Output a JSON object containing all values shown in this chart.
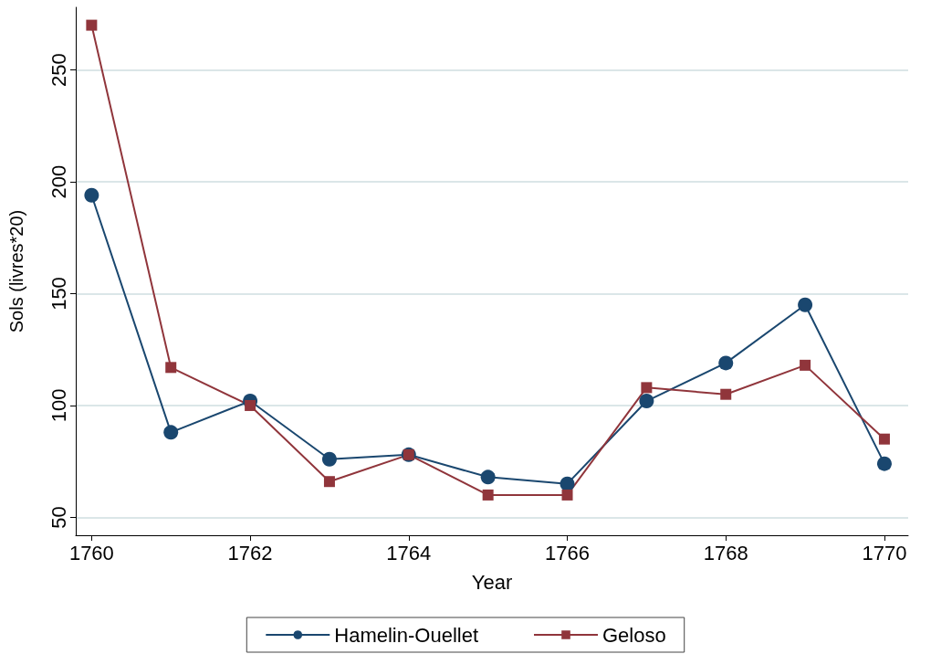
{
  "chart_data": {
    "type": "line",
    "xlabel": "Year",
    "ylabel": "Sols (livres*20)",
    "x": [
      1760,
      1761,
      1762,
      1763,
      1764,
      1765,
      1766,
      1767,
      1768,
      1769,
      1770
    ],
    "series": [
      {
        "name": "Hamelin-Ouellet",
        "color": "#1a476f",
        "marker": "circle",
        "values": [
          194,
          88,
          102,
          76,
          78,
          68,
          65,
          102,
          119,
          145,
          74
        ]
      },
      {
        "name": "Geloso",
        "color": "#90353b",
        "marker": "square",
        "values": [
          270,
          117,
          100,
          66,
          78,
          60,
          60,
          108,
          105,
          118,
          85
        ]
      }
    ],
    "xlim": [
      1759.8,
      1770.3
    ],
    "xticks": [
      1760,
      1762,
      1764,
      1766,
      1768,
      1770
    ],
    "ylim": [
      42,
      278
    ],
    "yticks": [
      50,
      100,
      150,
      200,
      250
    ],
    "grid": "y",
    "legend": "bottom",
    "line_style": "solid"
  }
}
